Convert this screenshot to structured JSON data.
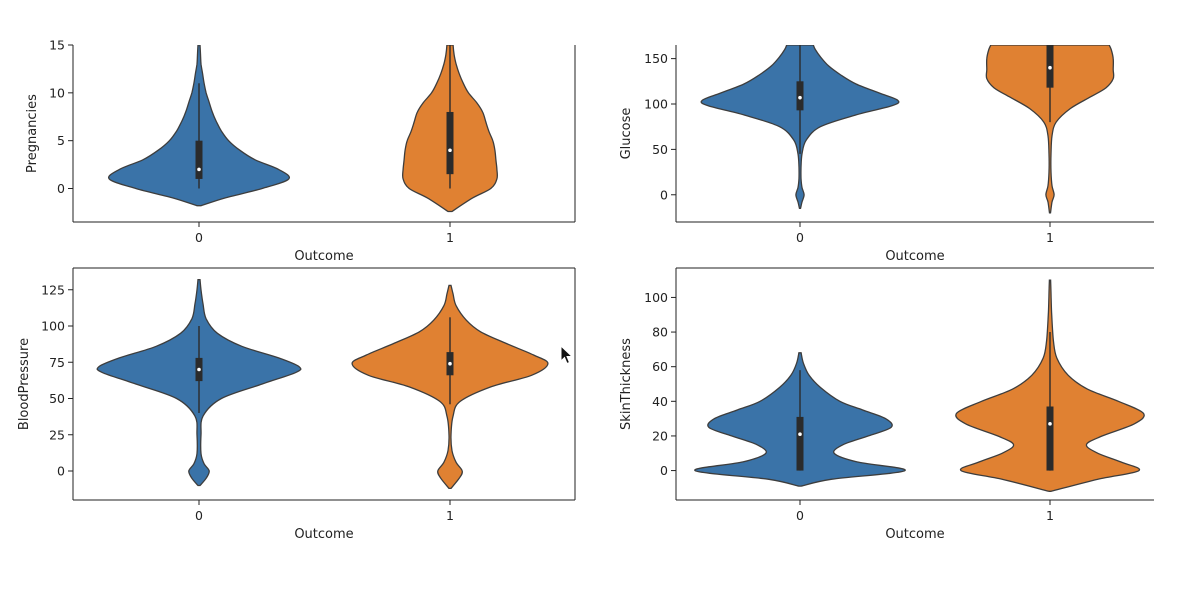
{
  "page": {
    "background": "#ffffff"
  },
  "colors": {
    "outcome_0": "#3a73a8",
    "outcome_1": "#e08132",
    "edge": "#3d3d3d",
    "box": "#2b2b2b"
  },
  "cursor": {
    "icon": "mouse-pointer-icon"
  },
  "chart_data": [
    {
      "type": "violin",
      "xlabel": "Outcome",
      "ylabel": "Pregnancies",
      "categories": [
        "0",
        "1"
      ],
      "ylim": [
        -3.5,
        15
      ],
      "yticks": [
        0,
        5,
        10,
        15
      ],
      "ytick_labels": [
        "0",
        "5",
        "10",
        "15"
      ],
      "series": [
        {
          "category": "0",
          "color": "#3a73a8",
          "median": 2,
          "q1": 1,
          "q3": 5,
          "whisker_low": 0,
          "whisker_high": 11,
          "density": [
            [
              -1.8,
              0.02
            ],
            [
              -1,
              0.25
            ],
            [
              0,
              0.62
            ],
            [
              1,
              0.88
            ],
            [
              2,
              0.78
            ],
            [
              3,
              0.55
            ],
            [
              4,
              0.4
            ],
            [
              5,
              0.29
            ],
            [
              6,
              0.22
            ],
            [
              7,
              0.17
            ],
            [
              8,
              0.13
            ],
            [
              9,
              0.1
            ],
            [
              10,
              0.07
            ],
            [
              11,
              0.05
            ],
            [
              12,
              0.035
            ],
            [
              13,
              0.02
            ],
            [
              14,
              0.015
            ],
            [
              15,
              0.01
            ]
          ]
        },
        {
          "category": "1",
          "color": "#e08132",
          "median": 4,
          "q1": 1.5,
          "q3": 8,
          "whisker_low": 0,
          "whisker_high": 15,
          "density": [
            [
              -2.4,
              0.02
            ],
            [
              -1,
              0.22
            ],
            [
              0,
              0.4
            ],
            [
              1,
              0.46
            ],
            [
              2,
              0.46
            ],
            [
              3,
              0.45
            ],
            [
              4,
              0.44
            ],
            [
              5,
              0.42
            ],
            [
              6,
              0.38
            ],
            [
              7,
              0.35
            ],
            [
              8,
              0.32
            ],
            [
              9,
              0.26
            ],
            [
              10,
              0.18
            ],
            [
              11,
              0.13
            ],
            [
              12,
              0.09
            ],
            [
              13,
              0.06
            ],
            [
              14,
              0.04
            ],
            [
              15,
              0.03
            ]
          ]
        }
      ]
    },
    {
      "type": "violin",
      "xlabel": "Outcome",
      "ylabel": "Glucose",
      "categories": [
        "0",
        "1"
      ],
      "ylim": [
        -30,
        165
      ],
      "yticks": [
        0,
        50,
        100,
        150
      ],
      "ytick_labels": [
        "0",
        "50",
        "100",
        "150"
      ],
      "series": [
        {
          "category": "0",
          "color": "#3a73a8",
          "median": 107,
          "q1": 93,
          "q3": 125,
          "whisker_low": 45,
          "whisker_high": 165,
          "density": [
            [
              -15,
              0.005
            ],
            [
              -8,
              0.02
            ],
            [
              0,
              0.04
            ],
            [
              8,
              0.02
            ],
            [
              18,
              0.01
            ],
            [
              30,
              0.01
            ],
            [
              45,
              0.02
            ],
            [
              60,
              0.06
            ],
            [
              75,
              0.2
            ],
            [
              88,
              0.55
            ],
            [
              98,
              0.9
            ],
            [
              104,
              0.96
            ],
            [
              112,
              0.78
            ],
            [
              122,
              0.55
            ],
            [
              132,
              0.4
            ],
            [
              142,
              0.28
            ],
            [
              152,
              0.2
            ],
            [
              160,
              0.15
            ],
            [
              165,
              0.13
            ]
          ]
        },
        {
          "category": "1",
          "color": "#e08132",
          "median": 140,
          "q1": 118,
          "q3": 165,
          "whisker_low": 80,
          "whisker_high": 165,
          "density": [
            [
              -20,
              0.005
            ],
            [
              -8,
              0.02
            ],
            [
              0,
              0.04
            ],
            [
              10,
              0.02
            ],
            [
              25,
              0.01
            ],
            [
              45,
              0.01
            ],
            [
              65,
              0.02
            ],
            [
              80,
              0.06
            ],
            [
              95,
              0.2
            ],
            [
              108,
              0.4
            ],
            [
              118,
              0.55
            ],
            [
              128,
              0.62
            ],
            [
              138,
              0.62
            ],
            [
              150,
              0.62
            ],
            [
              160,
              0.6
            ],
            [
              165,
              0.58
            ]
          ]
        }
      ]
    },
    {
      "type": "violin",
      "xlabel": "Outcome",
      "ylabel": "BloodPressure",
      "categories": [
        "0",
        "1"
      ],
      "ylim": [
        -20,
        140
      ],
      "yticks": [
        0,
        25,
        50,
        75,
        100,
        125
      ],
      "ytick_labels": [
        "0",
        "25",
        "50",
        "75",
        "100",
        "125"
      ],
      "series": [
        {
          "category": "0",
          "color": "#3a73a8",
          "median": 70,
          "q1": 62,
          "q3": 78,
          "whisker_low": 40,
          "whisker_high": 100,
          "density": [
            [
              -10,
              0.01
            ],
            [
              -5,
              0.07
            ],
            [
              0,
              0.1
            ],
            [
              5,
              0.05
            ],
            [
              12,
              0.02
            ],
            [
              25,
              0.02
            ],
            [
              38,
              0.04
            ],
            [
              50,
              0.22
            ],
            [
              60,
              0.62
            ],
            [
              68,
              0.95
            ],
            [
              72,
              0.98
            ],
            [
              78,
              0.78
            ],
            [
              86,
              0.42
            ],
            [
              95,
              0.18
            ],
            [
              105,
              0.07
            ],
            [
              115,
              0.04
            ],
            [
              125,
              0.02
            ],
            [
              132,
              0.01
            ]
          ]
        },
        {
          "category": "1",
          "color": "#e08132",
          "median": 74,
          "q1": 66,
          "q3": 82,
          "whisker_low": 46,
          "whisker_high": 106,
          "density": [
            [
              -12,
              0.01
            ],
            [
              -5,
              0.09
            ],
            [
              0,
              0.12
            ],
            [
              6,
              0.06
            ],
            [
              14,
              0.02
            ],
            [
              25,
              0.01
            ],
            [
              38,
              0.03
            ],
            [
              48,
              0.1
            ],
            [
              58,
              0.4
            ],
            [
              66,
              0.8
            ],
            [
              74,
              0.96
            ],
            [
              80,
              0.82
            ],
            [
              88,
              0.55
            ],
            [
              96,
              0.3
            ],
            [
              104,
              0.16
            ],
            [
              114,
              0.06
            ],
            [
              122,
              0.03
            ],
            [
              128,
              0.01
            ]
          ]
        }
      ]
    },
    {
      "type": "violin",
      "xlabel": "Outcome",
      "ylabel": "SkinThickness",
      "categories": [
        "0",
        "1"
      ],
      "ylim": [
        -17,
        117
      ],
      "yticks": [
        0,
        20,
        40,
        60,
        80,
        100
      ],
      "ytick_labels": [
        "0",
        "20",
        "40",
        "60",
        "80",
        "100"
      ],
      "series": [
        {
          "category": "0",
          "color": "#3a73a8",
          "median": 21,
          "q1": 0,
          "q3": 31,
          "whisker_low": 0,
          "whisker_high": 58,
          "density": [
            [
              -9,
              0.01
            ],
            [
              -5,
              0.28
            ],
            [
              0,
              0.92
            ],
            [
              5,
              0.5
            ],
            [
              10,
              0.3
            ],
            [
              15,
              0.38
            ],
            [
              20,
              0.6
            ],
            [
              25,
              0.8
            ],
            [
              30,
              0.75
            ],
            [
              35,
              0.55
            ],
            [
              40,
              0.35
            ],
            [
              48,
              0.18
            ],
            [
              55,
              0.08
            ],
            [
              62,
              0.03
            ],
            [
              68,
              0.01
            ]
          ]
        },
        {
          "category": "1",
          "color": "#e08132",
          "median": 27,
          "q1": 0,
          "q3": 37,
          "whisker_low": 0,
          "whisker_high": 80,
          "density": [
            [
              -12,
              0.01
            ],
            [
              -5,
              0.42
            ],
            [
              0,
              0.78
            ],
            [
              5,
              0.62
            ],
            [
              10,
              0.42
            ],
            [
              15,
              0.32
            ],
            [
              20,
              0.46
            ],
            [
              27,
              0.74
            ],
            [
              33,
              0.82
            ],
            [
              40,
              0.6
            ],
            [
              47,
              0.33
            ],
            [
              55,
              0.16
            ],
            [
              65,
              0.06
            ],
            [
              75,
              0.03
            ],
            [
              90,
              0.015
            ],
            [
              100,
              0.01
            ],
            [
              110,
              0.005
            ]
          ]
        }
      ]
    }
  ]
}
